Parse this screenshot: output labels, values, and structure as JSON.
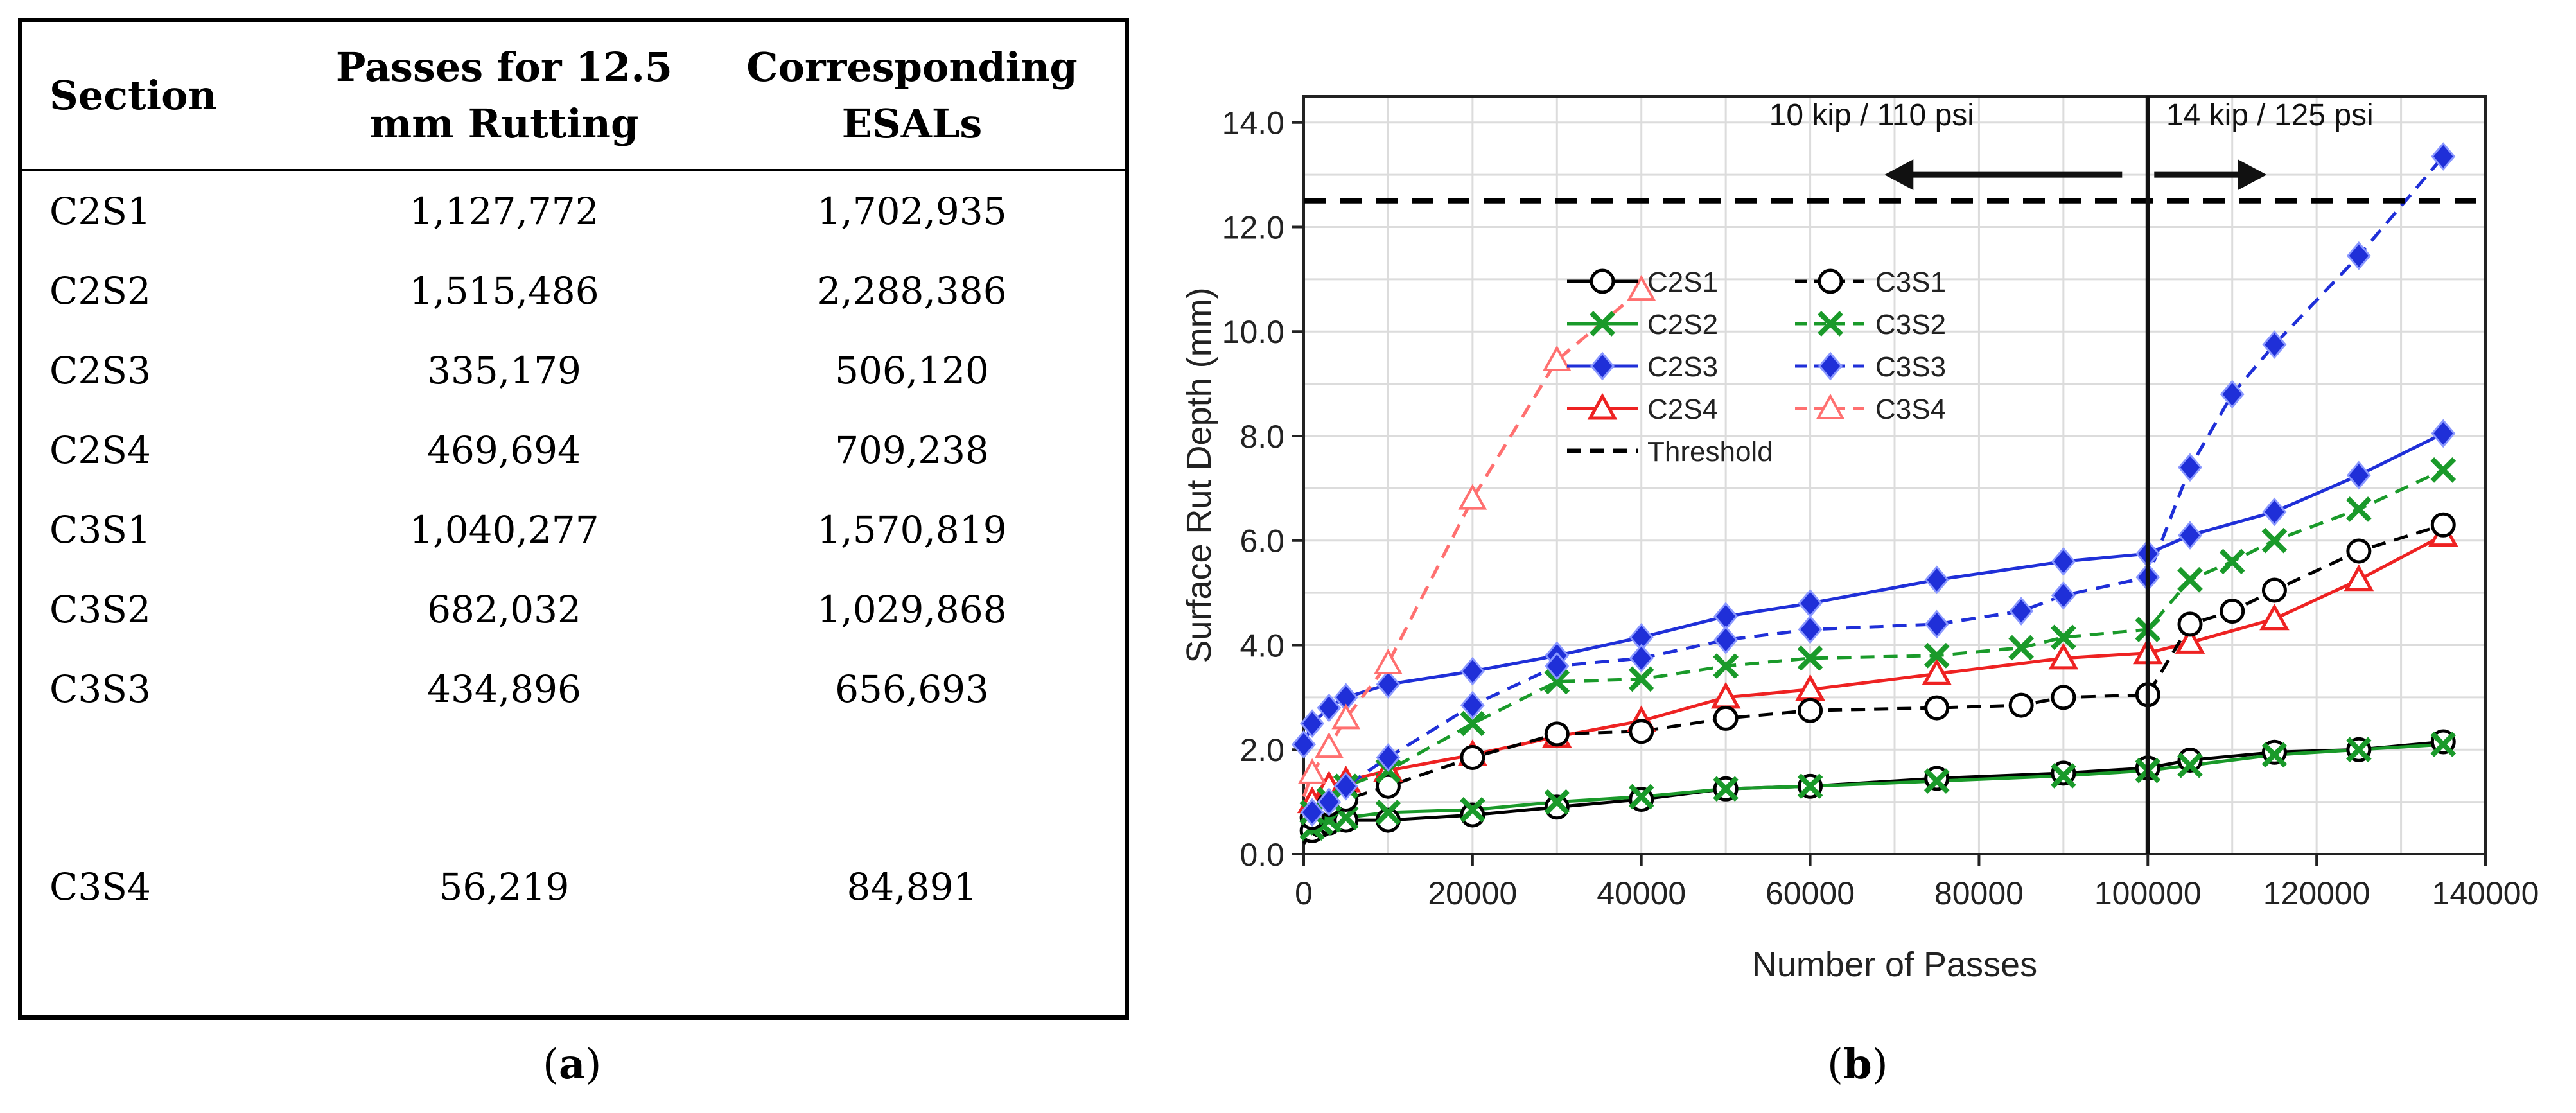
{
  "table": {
    "headers": {
      "section": "Section",
      "passes": [
        "Passes for 12.5",
        "mm Rutting"
      ],
      "esals": [
        "Corresponding",
        "ESALs"
      ]
    },
    "rows": [
      {
        "section": "C2S1",
        "passes": "1,127,772",
        "esals": "1,702,935"
      },
      {
        "section": "C2S2",
        "passes": "1,515,486",
        "esals": "2,288,386"
      },
      {
        "section": "C2S3",
        "passes": "335,179",
        "esals": "506,120"
      },
      {
        "section": "C2S4",
        "passes": "469,694",
        "esals": "709,238"
      },
      {
        "section": "C3S1",
        "passes": "1,040,277",
        "esals": "1,570,819"
      },
      {
        "section": "C3S2",
        "passes": "682,032",
        "esals": "1,029,868"
      },
      {
        "section": "C3S3",
        "passes": "434,896",
        "esals": "656,693"
      },
      {
        "section": "C3S4",
        "passes": "56,219",
        "esals": "84,891"
      }
    ]
  },
  "captions": {
    "a": {
      "open": "(",
      "letter": "a",
      "close": ")"
    },
    "b": {
      "open": "(",
      "letter": "b",
      "close": ")"
    }
  },
  "chart_data": {
    "type": "line",
    "xlabel": "Number of Passes",
    "ylabel": "Surface Rut Depth (mm)",
    "xlim": [
      0,
      140000
    ],
    "ylim": [
      0,
      14.5
    ],
    "xticks": [
      0,
      20000,
      40000,
      60000,
      80000,
      100000,
      120000,
      140000
    ],
    "xtick_labels": [
      "0",
      "20000",
      "40000",
      "60000",
      "80000",
      "100000",
      "120000",
      "140000"
    ],
    "yticks": [
      0,
      2,
      4,
      6,
      8,
      10,
      12,
      14
    ],
    "ytick_labels": [
      "0.0",
      "2.0",
      "4.0",
      "6.0",
      "8.0",
      "10.0",
      "12.0",
      "14.0"
    ],
    "grid": true,
    "legend_position": "center",
    "vertical_line_x": 100000,
    "annotations": {
      "left": "10 kip / 110 psi",
      "right": "14 kip / 125 psi"
    },
    "colors": {
      "black": "#000000",
      "green": "#1a9a2a",
      "blue": "#1f2fd8",
      "red": "#ee2222",
      "pink": "#ff7070"
    },
    "series": [
      {
        "name": "C2S1",
        "color": "#000000",
        "dash": "solid",
        "marker": "circle",
        "x": [
          0,
          1000,
          2000,
          3000,
          5000,
          10000,
          20000,
          30000,
          40000,
          50000,
          60000,
          75000,
          90000,
          100000,
          105000,
          115000,
          125000,
          135000
        ],
        "y": [
          0.2,
          0.45,
          0.55,
          0.6,
          0.65,
          0.65,
          0.75,
          0.9,
          1.05,
          1.25,
          1.3,
          1.45,
          1.55,
          1.65,
          1.8,
          1.95,
          2.0,
          2.15
        ]
      },
      {
        "name": "C2S2",
        "color": "#1a9a2a",
        "dash": "solid",
        "marker": "x",
        "x": [
          0,
          1000,
          2000,
          3000,
          5000,
          10000,
          20000,
          30000,
          40000,
          50000,
          60000,
          75000,
          90000,
          100000,
          105000,
          115000,
          125000,
          135000
        ],
        "y": [
          0.3,
          0.5,
          0.6,
          0.65,
          0.7,
          0.8,
          0.85,
          1.0,
          1.1,
          1.25,
          1.3,
          1.4,
          1.5,
          1.6,
          1.7,
          1.9,
          2.0,
          2.1
        ]
      },
      {
        "name": "C2S3",
        "color": "#1f2fd8",
        "dash": "solid",
        "marker": "diamond",
        "x": [
          0,
          1000,
          3000,
          5000,
          10000,
          20000,
          30000,
          40000,
          50000,
          60000,
          75000,
          90000,
          100000,
          105000,
          115000,
          125000,
          135000
        ],
        "y": [
          2.1,
          2.5,
          2.8,
          3.0,
          3.25,
          3.5,
          3.8,
          4.15,
          4.55,
          4.8,
          5.25,
          5.6,
          5.75,
          6.1,
          6.55,
          7.25,
          8.05
        ]
      },
      {
        "name": "C2S4",
        "color": "#ee2222",
        "dash": "solid",
        "marker": "triangle",
        "x": [
          0,
          1000,
          3000,
          5000,
          10000,
          20000,
          30000,
          40000,
          50000,
          60000,
          75000,
          90000,
          100000,
          105000,
          115000,
          125000,
          135000
        ],
        "y": [
          0.6,
          1.0,
          1.3,
          1.4,
          1.6,
          1.9,
          2.25,
          2.55,
          3.0,
          3.15,
          3.45,
          3.75,
          3.85,
          4.05,
          4.5,
          5.25,
          6.1
        ]
      },
      {
        "name": "C3S1",
        "color": "#000000",
        "dash": "dashed",
        "marker": "circle",
        "x": [
          0,
          1000,
          3000,
          5000,
          10000,
          20000,
          30000,
          40000,
          50000,
          60000,
          75000,
          85000,
          90000,
          100000,
          105000,
          110000,
          115000,
          125000,
          135000
        ],
        "y": [
          0.3,
          0.7,
          0.95,
          1.05,
          1.3,
          1.85,
          2.3,
          2.35,
          2.6,
          2.75,
          2.8,
          2.85,
          3.0,
          3.05,
          4.4,
          4.65,
          5.05,
          5.8,
          6.3
        ]
      },
      {
        "name": "C3S2",
        "color": "#1a9a2a",
        "dash": "dashed",
        "marker": "x",
        "x": [
          0,
          1000,
          3000,
          5000,
          10000,
          20000,
          30000,
          40000,
          50000,
          60000,
          75000,
          85000,
          90000,
          100000,
          105000,
          110000,
          115000,
          125000,
          135000
        ],
        "y": [
          0.5,
          0.8,
          1.05,
          1.3,
          1.6,
          2.5,
          3.3,
          3.35,
          3.6,
          3.75,
          3.8,
          3.95,
          4.15,
          4.3,
          5.25,
          5.6,
          6.0,
          6.6,
          7.35
        ]
      },
      {
        "name": "C3S3",
        "color": "#1f2fd8",
        "dash": "dashed",
        "marker": "diamond",
        "x": [
          0,
          1000,
          3000,
          5000,
          10000,
          20000,
          30000,
          40000,
          50000,
          60000,
          75000,
          85000,
          90000,
          100000,
          105000,
          110000,
          115000,
          125000,
          135000
        ],
        "y": [
          0.4,
          0.8,
          1.0,
          1.3,
          1.85,
          2.85,
          3.6,
          3.75,
          4.1,
          4.3,
          4.4,
          4.65,
          4.95,
          5.3,
          7.4,
          8.8,
          9.75,
          11.45,
          13.35
        ]
      },
      {
        "name": "C3S4",
        "color": "#ff7070",
        "dash": "dashed",
        "marker": "triangle-open",
        "x": [
          0,
          1000,
          3000,
          5000,
          10000,
          20000,
          30000,
          40000
        ],
        "y": [
          1.1,
          1.55,
          2.05,
          2.6,
          3.65,
          6.8,
          9.45,
          10.8
        ]
      },
      {
        "name": "Threshold",
        "color": "#000000",
        "dash": "heavy-dashed",
        "marker": "none",
        "x": [
          0,
          140000
        ],
        "y": [
          12.5,
          12.5
        ]
      }
    ]
  }
}
